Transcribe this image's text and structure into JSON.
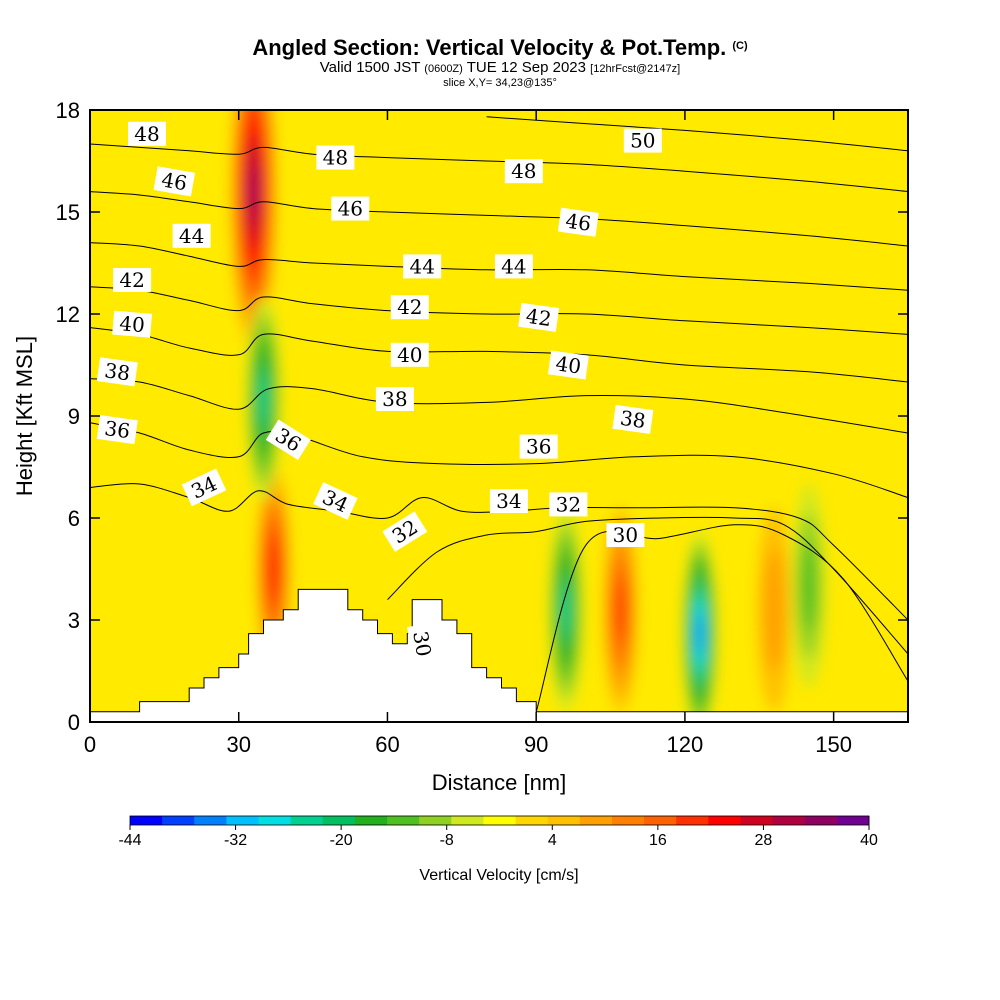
{
  "header": {
    "title": "Angled Section: Vertical Velocity & Pot.Temp.",
    "title_mark": "(C)",
    "subtitle_a": "Valid 1500 JST",
    "subtitle_b": "(0600Z)",
    "subtitle_c": "TUE 12 Sep 2023",
    "subtitle_d": "[12hrFcst@2147z]",
    "slice": "slice X,Y= 34,23@135°"
  },
  "chart_data": {
    "type": "heatmap",
    "xlabel": "Distance [nm]",
    "ylabel": "Height [Kft MSL]",
    "xlim": [
      0,
      165
    ],
    "ylim": [
      0,
      18
    ],
    "xticks": [
      0,
      30,
      60,
      90,
      120,
      150
    ],
    "yticks": [
      0,
      3,
      6,
      9,
      12,
      15,
      18
    ],
    "colorbar": {
      "label": "Vertical Velocity [cm/s]",
      "ticks": [
        -44,
        -32,
        -20,
        -8,
        4,
        16,
        28,
        40
      ],
      "range": [
        -44,
        40
      ],
      "step": 4,
      "colors": [
        "#0000ff",
        "#0040ff",
        "#0080ff",
        "#00c0ff",
        "#00e0e0",
        "#00d090",
        "#00c060",
        "#20b020",
        "#50c020",
        "#90d020",
        "#d0e820",
        "#ffff00",
        "#ffd700",
        "#ffc000",
        "#ffa000",
        "#ff8000",
        "#ff6000",
        "#ff3000",
        "#ff0000",
        "#d00020",
        "#b00040",
        "#900060",
        "#700090"
      ]
    },
    "terrain_profile": [
      [
        0,
        0.3
      ],
      [
        10,
        0.3
      ],
      [
        10,
        0.6
      ],
      [
        20,
        0.6
      ],
      [
        20,
        1.0
      ],
      [
        23,
        1.0
      ],
      [
        23,
        1.3
      ],
      [
        26,
        1.3
      ],
      [
        26,
        1.6
      ],
      [
        30,
        1.6
      ],
      [
        30,
        2.0
      ],
      [
        32,
        2.0
      ],
      [
        32,
        2.6
      ],
      [
        35,
        2.6
      ],
      [
        35,
        3.0
      ],
      [
        39,
        3.0
      ],
      [
        39,
        3.3
      ],
      [
        42,
        3.3
      ],
      [
        42,
        3.9
      ],
      [
        52,
        3.9
      ],
      [
        52,
        3.3
      ],
      [
        55,
        3.3
      ],
      [
        55,
        3.0
      ],
      [
        58,
        3.0
      ],
      [
        58,
        2.6
      ],
      [
        61,
        2.6
      ],
      [
        61,
        2.3
      ],
      [
        64,
        2.3
      ],
      [
        64,
        2.6
      ],
      [
        65,
        2.6
      ],
      [
        65,
        3.6
      ],
      [
        71,
        3.6
      ],
      [
        71,
        3.0
      ],
      [
        74,
        3.0
      ],
      [
        74,
        2.6
      ],
      [
        77,
        2.6
      ],
      [
        77,
        1.6
      ],
      [
        80,
        1.6
      ],
      [
        80,
        1.3
      ],
      [
        83,
        1.3
      ],
      [
        83,
        1.0
      ],
      [
        86,
        1.0
      ],
      [
        86,
        0.6
      ],
      [
        90,
        0.6
      ],
      [
        90,
        0.3
      ],
      [
        165,
        0.3
      ]
    ],
    "updraft_cores": [
      {
        "x": 33,
        "y": 15.6,
        "value": 40
      },
      {
        "x": 37,
        "y": 4.5,
        "value": 28
      },
      {
        "x": 107,
        "y": 3.3,
        "value": 26
      },
      {
        "x": 138,
        "y": 3.3,
        "value": 12
      }
    ],
    "downdraft_cores": [
      {
        "x": 35,
        "y": 9.5,
        "value": -22
      },
      {
        "x": 96,
        "y": 3.3,
        "value": -20
      },
      {
        "x": 123,
        "y": 2.6,
        "value": -34
      },
      {
        "x": 145,
        "y": 4.0,
        "value": -10
      }
    ],
    "isentropes": [
      {
        "theta": 30,
        "points": [
          [
            90,
            0.3
          ],
          [
            100,
            5.2
          ],
          [
            115,
            5.4
          ],
          [
            130,
            5.8
          ],
          [
            140,
            5.5
          ],
          [
            152,
            4.2
          ],
          [
            165,
            1.2
          ]
        ]
      },
      {
        "theta": 32,
        "points": [
          [
            60,
            3.6
          ],
          [
            70,
            5.0
          ],
          [
            80,
            5.5
          ],
          [
            90,
            5.6
          ],
          [
            100,
            5.9
          ],
          [
            115,
            6.0
          ],
          [
            130,
            6.0
          ],
          [
            140,
            5.8
          ],
          [
            150,
            4.5
          ],
          [
            165,
            2.0
          ]
        ]
      },
      {
        "theta": 34,
        "points": [
          [
            0,
            6.9
          ],
          [
            10,
            7.0
          ],
          [
            20,
            6.6
          ],
          [
            28,
            6.2
          ],
          [
            34,
            6.8
          ],
          [
            40,
            6.4
          ],
          [
            50,
            6.2
          ],
          [
            60,
            6.0
          ],
          [
            67,
            6.6
          ],
          [
            75,
            6.2
          ],
          [
            85,
            6.2
          ],
          [
            95,
            6.3
          ],
          [
            110,
            6.3
          ],
          [
            130,
            6.3
          ],
          [
            143,
            6.0
          ],
          [
            150,
            5.2
          ],
          [
            165,
            3.0
          ]
        ]
      },
      {
        "theta": 36,
        "points": [
          [
            0,
            8.8
          ],
          [
            10,
            8.5
          ],
          [
            20,
            8.0
          ],
          [
            30,
            7.8
          ],
          [
            35,
            8.5
          ],
          [
            42,
            8.4
          ],
          [
            55,
            7.8
          ],
          [
            70,
            7.6
          ],
          [
            90,
            7.6
          ],
          [
            110,
            7.8
          ],
          [
            130,
            7.8
          ],
          [
            150,
            7.3
          ],
          [
            165,
            6.6
          ]
        ]
      },
      {
        "theta": 38,
        "points": [
          [
            0,
            10.1
          ],
          [
            10,
            10.0
          ],
          [
            20,
            9.6
          ],
          [
            30,
            9.2
          ],
          [
            36,
            9.8
          ],
          [
            45,
            9.8
          ],
          [
            60,
            9.4
          ],
          [
            80,
            9.4
          ],
          [
            100,
            9.6
          ],
          [
            120,
            9.5
          ],
          [
            140,
            9.1
          ],
          [
            165,
            8.5
          ]
        ]
      },
      {
        "theta": 40,
        "points": [
          [
            0,
            11.6
          ],
          [
            10,
            11.4
          ],
          [
            20,
            11.0
          ],
          [
            30,
            10.8
          ],
          [
            35,
            11.4
          ],
          [
            45,
            11.2
          ],
          [
            60,
            10.9
          ],
          [
            80,
            10.9
          ],
          [
            100,
            10.8
          ],
          [
            120,
            10.5
          ],
          [
            145,
            10.3
          ],
          [
            165,
            10.0
          ]
        ]
      },
      {
        "theta": 42,
        "points": [
          [
            0,
            12.8
          ],
          [
            10,
            12.7
          ],
          [
            20,
            12.4
          ],
          [
            30,
            12.1
          ],
          [
            35,
            12.5
          ],
          [
            45,
            12.3
          ],
          [
            60,
            12.1
          ],
          [
            80,
            12.0
          ],
          [
            100,
            12.0
          ],
          [
            120,
            11.8
          ],
          [
            145,
            11.6
          ],
          [
            165,
            11.4
          ]
        ]
      },
      {
        "theta": 44,
        "points": [
          [
            0,
            14.1
          ],
          [
            10,
            14.0
          ],
          [
            20,
            13.7
          ],
          [
            30,
            13.4
          ],
          [
            35,
            13.6
          ],
          [
            45,
            13.5
          ],
          [
            60,
            13.4
          ],
          [
            80,
            13.3
          ],
          [
            100,
            13.3
          ],
          [
            120,
            13.1
          ],
          [
            145,
            12.9
          ],
          [
            165,
            12.7
          ]
        ]
      },
      {
        "theta": 46,
        "points": [
          [
            0,
            15.6
          ],
          [
            10,
            15.5
          ],
          [
            20,
            15.3
          ],
          [
            30,
            15.1
          ],
          [
            35,
            15.3
          ],
          [
            45,
            15.1
          ],
          [
            60,
            15.0
          ],
          [
            80,
            14.9
          ],
          [
            100,
            14.8
          ],
          [
            120,
            14.6
          ],
          [
            145,
            14.3
          ],
          [
            165,
            14.0
          ]
        ]
      },
      {
        "theta": 48,
        "points": [
          [
            0,
            17.0
          ],
          [
            10,
            16.9
          ],
          [
            20,
            16.8
          ],
          [
            30,
            16.7
          ],
          [
            35,
            16.9
          ],
          [
            45,
            16.7
          ],
          [
            60,
            16.6
          ],
          [
            80,
            16.5
          ],
          [
            100,
            16.4
          ],
          [
            120,
            16.2
          ],
          [
            145,
            15.9
          ],
          [
            165,
            15.6
          ]
        ]
      },
      {
        "theta": 50,
        "points": [
          [
            80,
            17.8
          ],
          [
            100,
            17.6
          ],
          [
            120,
            17.4
          ],
          [
            145,
            17.1
          ],
          [
            165,
            16.8
          ]
        ]
      }
    ],
    "contour_labels": [
      {
        "text": "48",
        "x": 11.5,
        "y": 17.3,
        "rot": 0
      },
      {
        "text": "46",
        "x": 17.0,
        "y": 15.9,
        "rot": 10
      },
      {
        "text": "44",
        "x": 20.5,
        "y": 14.3,
        "rot": 0
      },
      {
        "text": "42",
        "x": 8.5,
        "y": 13.0,
        "rot": 0
      },
      {
        "text": "40",
        "x": 8.5,
        "y": 11.7,
        "rot": 5
      },
      {
        "text": "38",
        "x": 5.5,
        "y": 10.3,
        "rot": 8
      },
      {
        "text": "36",
        "x": 5.5,
        "y": 8.6,
        "rot": 8
      },
      {
        "text": "34",
        "x": 23.0,
        "y": 6.9,
        "rot": -25
      },
      {
        "text": "36",
        "x": 40.0,
        "y": 8.3,
        "rot": 32
      },
      {
        "text": "34",
        "x": 49.5,
        "y": 6.5,
        "rot": 25
      },
      {
        "text": "32",
        "x": 63.5,
        "y": 5.6,
        "rot": -32
      },
      {
        "text": "48",
        "x": 49.5,
        "y": 16.6,
        "rot": 0
      },
      {
        "text": "46",
        "x": 52.5,
        "y": 15.1,
        "rot": 0
      },
      {
        "text": "44",
        "x": 67.0,
        "y": 13.4,
        "rot": 0
      },
      {
        "text": "42",
        "x": 64.5,
        "y": 12.2,
        "rot": 0
      },
      {
        "text": "40",
        "x": 64.5,
        "y": 10.8,
        "rot": 0
      },
      {
        "text": "38",
        "x": 61.5,
        "y": 9.5,
        "rot": 0
      },
      {
        "text": "44",
        "x": 85.5,
        "y": 13.4,
        "rot": 0
      },
      {
        "text": "48",
        "x": 87.5,
        "y": 16.2,
        "rot": 0
      },
      {
        "text": "46",
        "x": 98.5,
        "y": 14.7,
        "rot": 8
      },
      {
        "text": "42",
        "x": 90.5,
        "y": 11.9,
        "rot": 8
      },
      {
        "text": "40",
        "x": 96.5,
        "y": 10.5,
        "rot": 8
      },
      {
        "text": "36",
        "x": 90.5,
        "y": 8.1,
        "rot": 0
      },
      {
        "text": "34",
        "x": 84.5,
        "y": 6.5,
        "rot": 0
      },
      {
        "text": "32",
        "x": 96.5,
        "y": 6.4,
        "rot": 0
      },
      {
        "text": "50",
        "x": 111.5,
        "y": 17.1,
        "rot": 0
      },
      {
        "text": "38",
        "x": 109.5,
        "y": 8.9,
        "rot": 8
      },
      {
        "text": "30",
        "x": 108.0,
        "y": 5.5,
        "rot": 0
      },
      {
        "text": "30",
        "x": 67.0,
        "y": 2.3,
        "rot": 80
      }
    ]
  }
}
